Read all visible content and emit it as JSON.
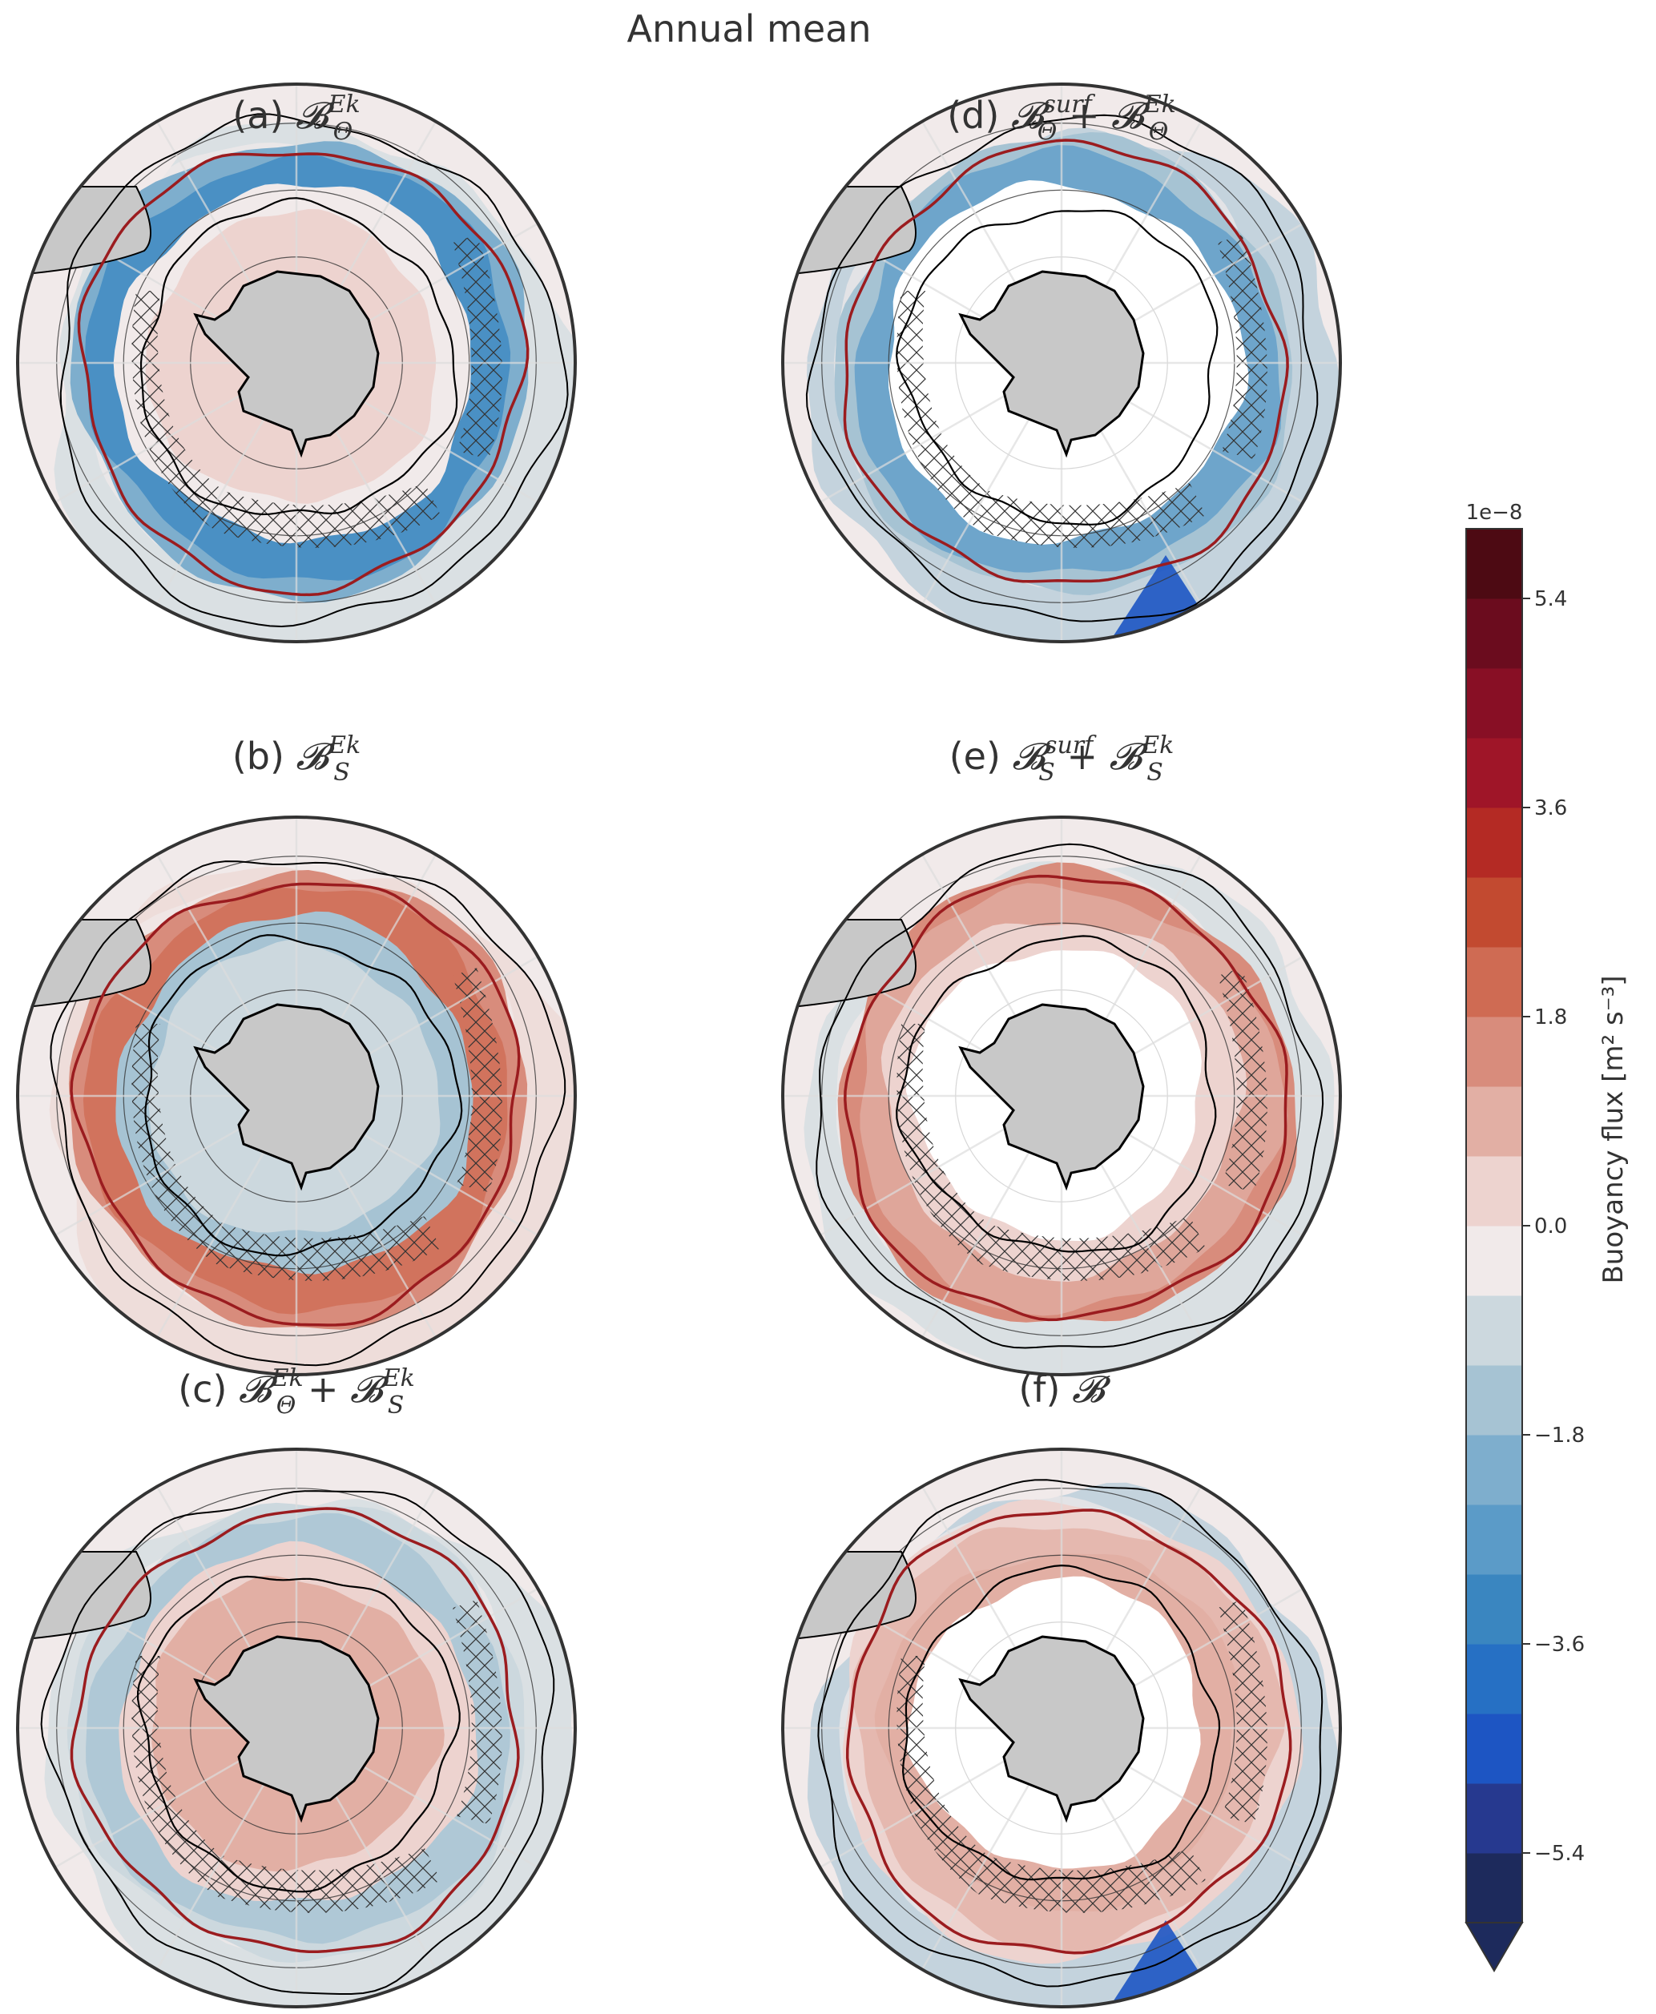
{
  "figure_title": "Annual mean",
  "panels": [
    {
      "id": "a",
      "label": "(a)",
      "title_text": "𝓑Θ^Ek",
      "term1": {
        "sup": "Ek",
        "sub": "Θ"
      },
      "term2": null,
      "style": "theta"
    },
    {
      "id": "b",
      "label": "(b)",
      "title_text": "𝓑S^Ek",
      "term1": {
        "sup": "Ek",
        "sub": "S"
      },
      "term2": null,
      "style": "salt"
    },
    {
      "id": "c",
      "label": "(c)",
      "title_text": "𝓑Θ^Ek + 𝓑S^Ek",
      "term1": {
        "sup": "Ek",
        "sub": "Θ"
      },
      "term2": {
        "sup": "Ek",
        "sub": "S"
      },
      "style": "sum"
    },
    {
      "id": "d",
      "label": "(d)",
      "title_text": "𝓑Θ^surf + 𝓑Θ^Ek",
      "term1": {
        "sup": "surf",
        "sub": "Θ"
      },
      "term2": {
        "sup": "Ek",
        "sub": "Θ"
      },
      "style": "surftheta"
    },
    {
      "id": "e",
      "label": "(e)",
      "title_text": "𝓑S^surf + 𝓑S^Ek",
      "term1": {
        "sup": "surf",
        "sub": "S"
      },
      "term2": {
        "sup": "Ek",
        "sub": "S"
      },
      "style": "surfsalt"
    },
    {
      "id": "f",
      "label": "(f)",
      "title_text": "𝓑",
      "term1": {
        "sup": "",
        "sub": ""
      },
      "term2": null,
      "style": "total"
    }
  ],
  "colorbar": {
    "label": "Buoyancy flux [m² s⁻³]",
    "offset_text": "1e−8",
    "ticks": [
      "5.4",
      "3.6",
      "1.8",
      "0.0",
      "−1.8",
      "−3.6",
      "−5.4"
    ],
    "tick_values": [
      5.4,
      3.6,
      1.8,
      0.0,
      -1.8,
      -3.6,
      -5.4
    ],
    "range": [
      -6.0,
      6.0
    ],
    "extend": "min",
    "colors": [
      "#1d2a5c",
      "#26398f",
      "#1d55c3",
      "#2670c4",
      "#3a86c0",
      "#5b9bc8",
      "#7eaecd",
      "#a6c3d3",
      "#ccd8de",
      "#f1eaea",
      "#edd3cf",
      "#e2afa4",
      "#d88c7c",
      "#cf6b53",
      "#c24a30",
      "#b42a24",
      "#9f1528",
      "#880f25",
      "#6b0c1e",
      "#4d0a13"
    ]
  },
  "chart_data": {
    "type": "heatmap",
    "title": "Annual mean",
    "projection": "south polar stereographic",
    "units": "m² s⁻³",
    "scale": 1e-08,
    "color_levels": [
      -6.0,
      -5.4,
      -4.8,
      -4.2,
      -3.6,
      -3.0,
      -2.4,
      -1.8,
      -1.2,
      -0.6,
      0.0,
      0.6,
      1.2,
      1.8,
      2.4,
      3.0,
      3.6,
      4.2,
      4.8,
      5.4,
      6.0
    ],
    "panels": [
      "(a)",
      "(b)",
      "(c)",
      "(d)",
      "(e)",
      "(f)"
    ]
  }
}
